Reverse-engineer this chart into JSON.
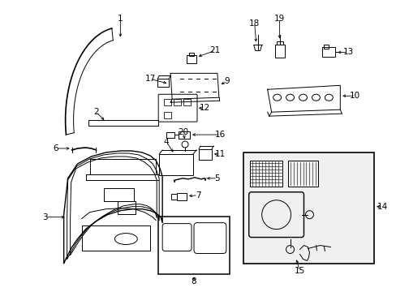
{
  "background_color": "#ffffff",
  "line_color": "#000000",
  "font_size": 7.5,
  "lw": 0.7
}
